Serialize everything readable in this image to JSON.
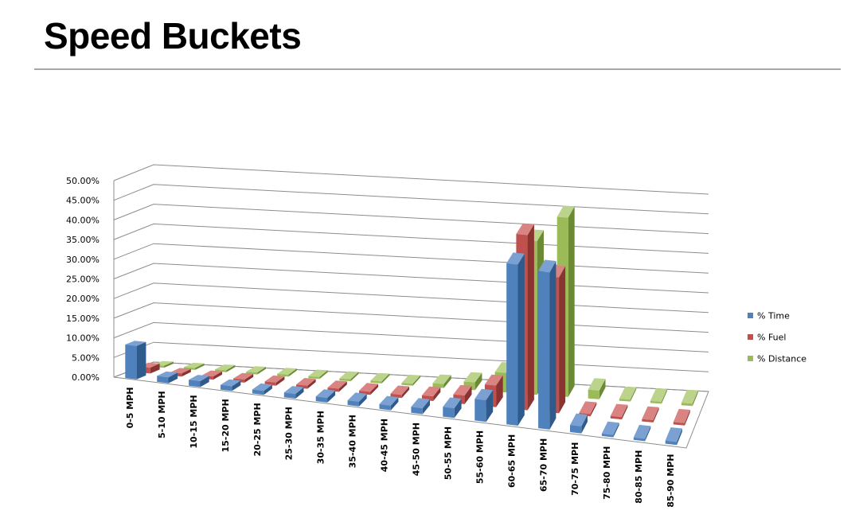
{
  "slide": {
    "title": "Speed Buckets"
  },
  "chart_data": {
    "type": "bar",
    "subtype": "3d-clustered-column",
    "title": "",
    "xlabel": "",
    "ylabel": "",
    "categories": [
      "0-5 MPH",
      "5-10 MPH",
      "10-15 MPH",
      "15-20 MPH",
      "20-25 MPH",
      "25-30 MPH",
      "30-35 MPH",
      "35-40 MPH",
      "40-45 MPH",
      "45-50 MPH",
      "50-55 MPH",
      "55-60 MPH",
      "60-65 MPH",
      "65-70 MPH",
      "70-75 MPH",
      "75-80 MPH",
      "80-85 MPH",
      "85-90 MPH"
    ],
    "series": [
      {
        "name": "% Time",
        "color": "#4f81bd",
        "top": "#7aa1d1",
        "side": "#2f5a8c",
        "values": [
          8.5,
          1.5,
          1.5,
          1.2,
          1.0,
          1.2,
          1.2,
          1.2,
          1.2,
          1.5,
          2.5,
          5.5,
          41.0,
          40.0,
          1.8,
          0.6,
          0.6,
          0.8
        ]
      },
      {
        "name": "% Fuel",
        "color": "#c0504d",
        "top": "#d98482",
        "side": "#8a3330",
        "values": [
          1.5,
          0.8,
          0.8,
          0.8,
          0.8,
          0.8,
          0.8,
          0.8,
          0.8,
          1.2,
          2.2,
          5.5,
          44.5,
          34.5,
          0.6,
          0.6,
          0.6,
          0.6
        ]
      },
      {
        "name": "% Distance",
        "color": "#9bbb59",
        "top": "#bcd38b",
        "side": "#6b8a34",
        "values": [
          0.5,
          0.5,
          0.5,
          0.5,
          0.5,
          0.5,
          0.5,
          0.5,
          0.5,
          1.0,
          2.0,
          5.0,
          39.0,
          45.5,
          2.2,
          0.5,
          0.5,
          0.6
        ]
      }
    ],
    "y_ticks": [
      "0.00%",
      "5.00%",
      "10.00%",
      "15.00%",
      "20.00%",
      "25.00%",
      "30.00%",
      "35.00%",
      "40.00%",
      "45.00%",
      "50.00%"
    ],
    "ylim": [
      0,
      50
    ],
    "grid": true,
    "legend_position": "right"
  }
}
